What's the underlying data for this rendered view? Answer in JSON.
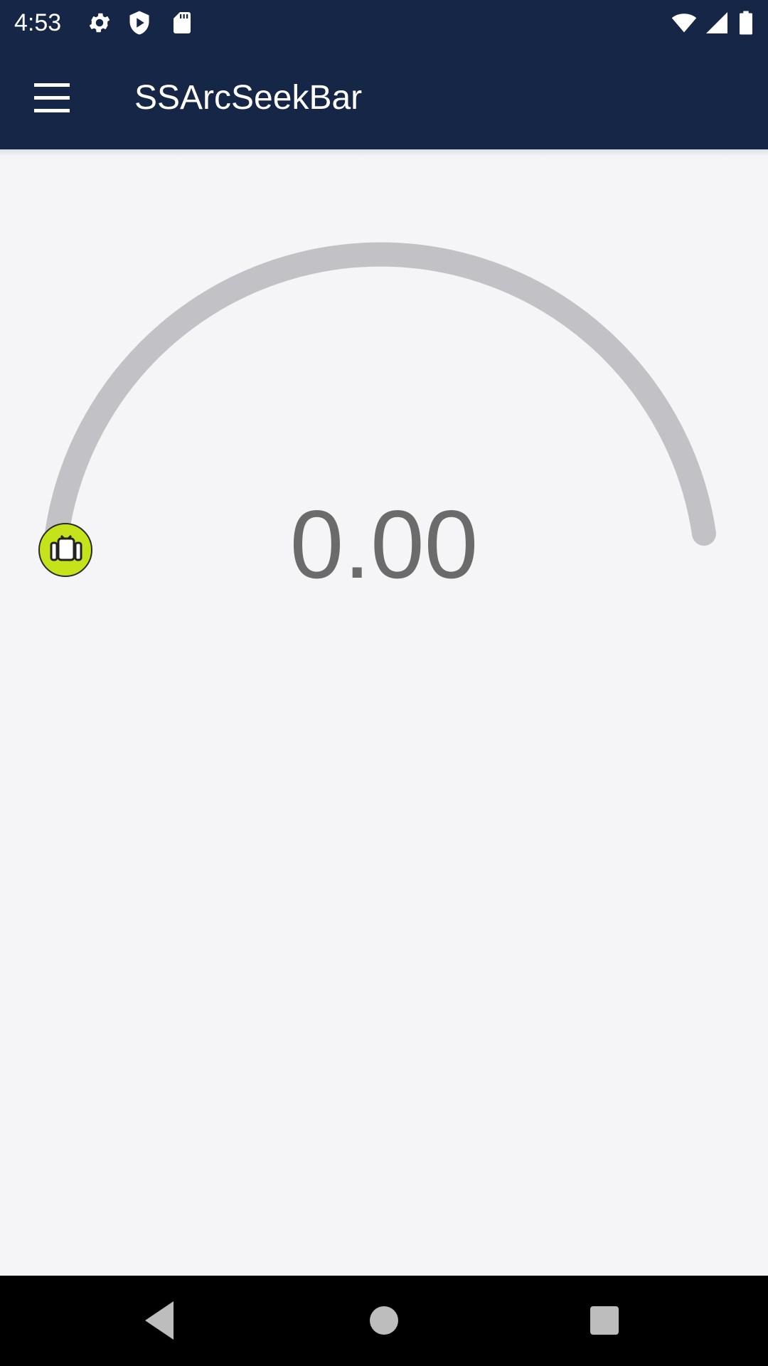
{
  "status_bar": {
    "time": "4:53",
    "left_icons": [
      "settings-icon",
      "play-protect-icon",
      "sd-card-icon"
    ],
    "right_icons": [
      "wifi-icon",
      "cellular-icon",
      "battery-icon"
    ]
  },
  "app_bar": {
    "menu_icon": "menu-icon",
    "title": "SSArcSeekBar"
  },
  "seek_bar": {
    "value_text": "0.00",
    "progress": 0,
    "track_color": "#c2c2c6",
    "thumb_color": "#c5e21a",
    "thumb_icon": "android-icon"
  },
  "nav_bar": {
    "back_icon": "back-icon",
    "home_icon": "home-icon",
    "recents_icon": "recents-icon"
  }
}
